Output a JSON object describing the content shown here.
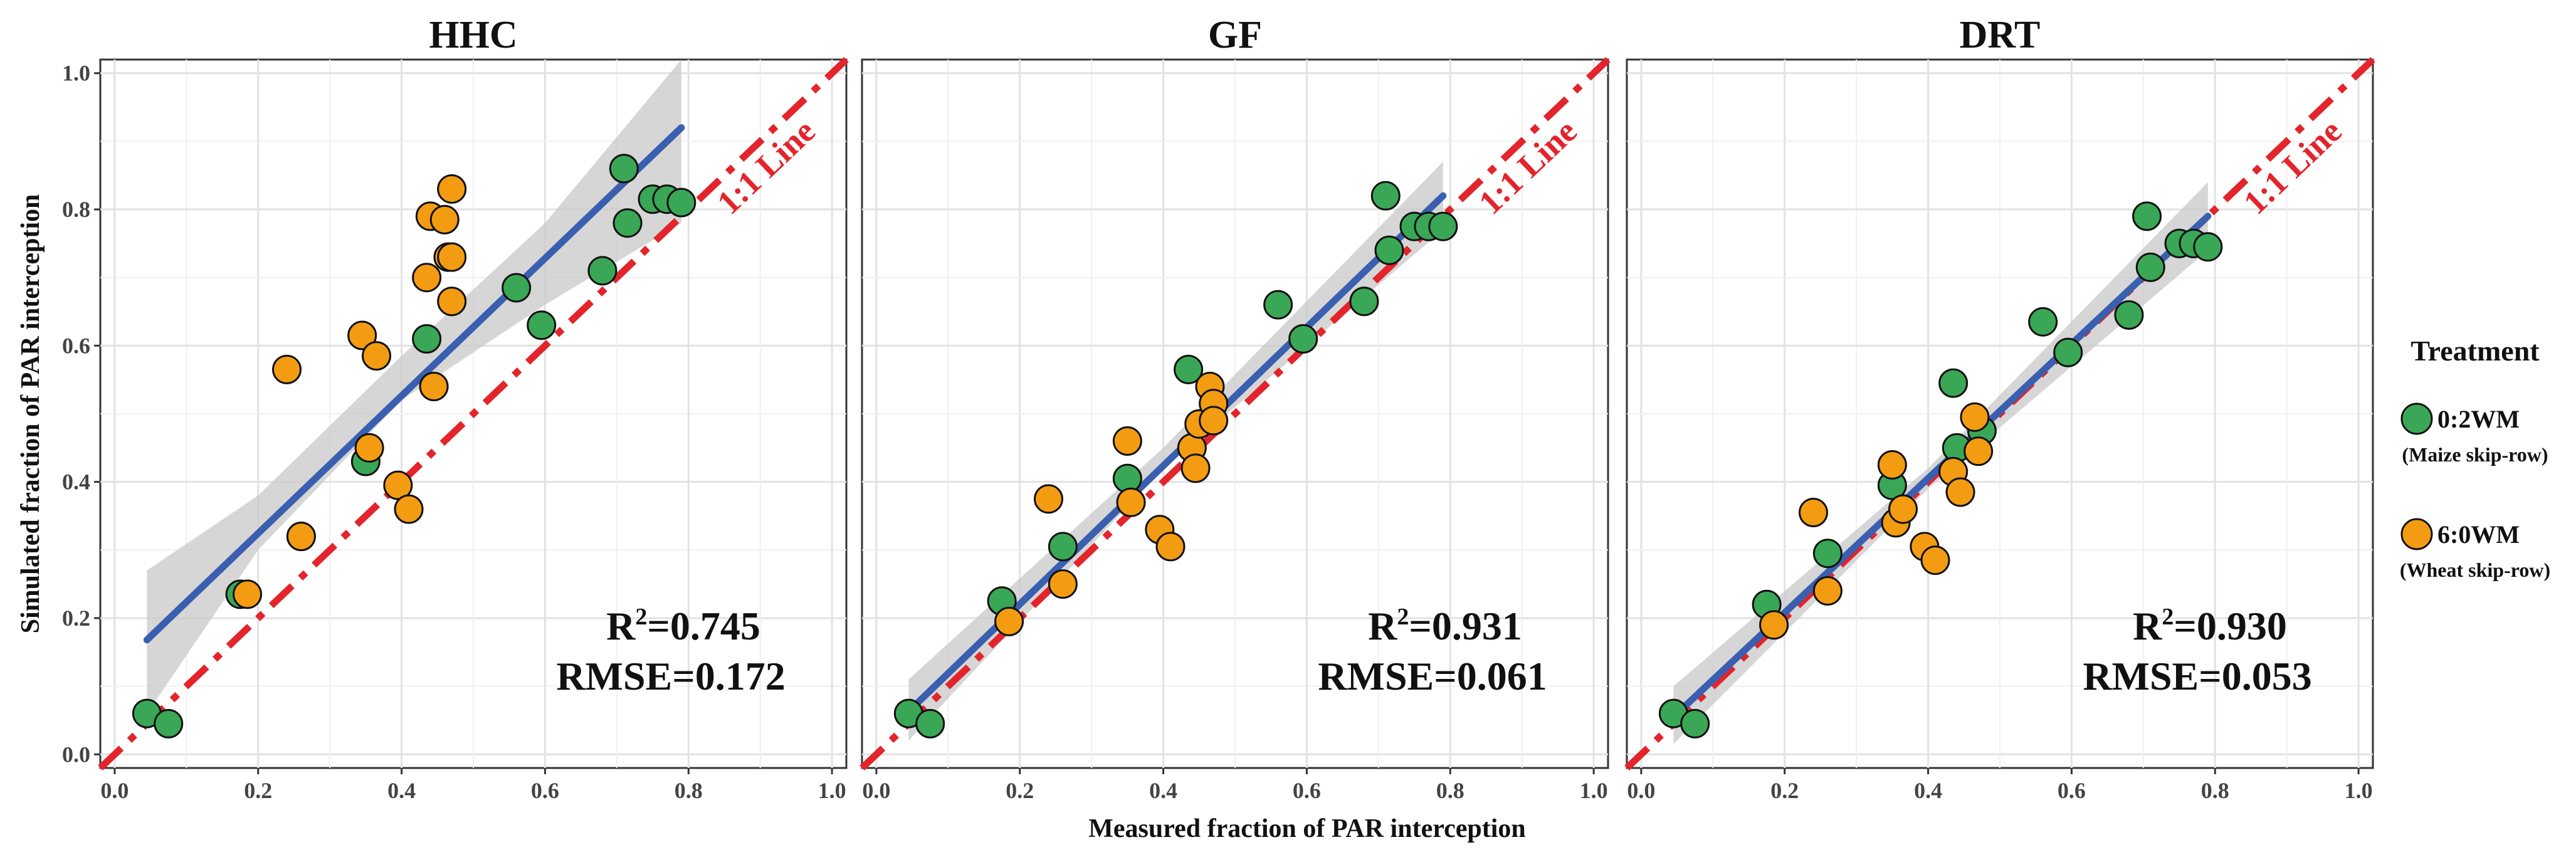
{
  "chart_data": {
    "type": "scatter",
    "xlabel": "Measured fraction of PAR interception",
    "ylabel": "Simulated fraction of PAR interception",
    "xlim": [
      0,
      1
    ],
    "ylim": [
      0,
      1
    ],
    "x_ticks": [
      "0.0",
      "0.2",
      "0.4",
      "0.6",
      "0.8",
      "1.0"
    ],
    "y_ticks": [
      "0.0",
      "0.2",
      "0.4",
      "0.6",
      "0.8",
      "1.0"
    ],
    "grid": true,
    "reference_line_label": "1:1 Line",
    "legend": {
      "title": "Treatment",
      "position": "right",
      "entries": [
        {
          "label": "0:2WM",
          "sublabel": "(Maize skip-row)",
          "color": "#3aa757"
        },
        {
          "label": "6:0WM",
          "sublabel": "(Wheat skip-row)",
          "color": "#f39c12"
        }
      ]
    },
    "colors": {
      "reference_line": "#e3242b",
      "fit_line": "#3a5fb0",
      "confidence_band": "#c8c8c8"
    },
    "panels": [
      {
        "title": "HHC",
        "r2_prefix": "R",
        "r2_sup": "2",
        "r2_value": "=0.745",
        "rmse_text": "RMSE=0.172",
        "fit": {
          "x0": 0.045,
          "y0": 0.168,
          "x1": 0.79,
          "y1": 0.92
        },
        "band": {
          "lower": [
            [
              0.045,
              0.06
            ],
            [
              0.2,
              0.3
            ],
            [
              0.4,
              0.52
            ],
            [
              0.6,
              0.66
            ],
            [
              0.79,
              0.78
            ]
          ],
          "upper": [
            [
              0.045,
              0.27
            ],
            [
              0.2,
              0.38
            ],
            [
              0.4,
              0.585
            ],
            [
              0.6,
              0.78
            ],
            [
              0.79,
              1.02
            ]
          ]
        },
        "series": [
          {
            "name": "0:2WM",
            "x": [
              0.045,
              0.075,
              0.175,
              0.26,
              0.35,
              0.435,
              0.56,
              0.595,
              0.68,
              0.71,
              0.715,
              0.75,
              0.77,
              0.79
            ],
            "y": [
              0.06,
              0.045,
              0.235,
              0.32,
              0.43,
              0.61,
              0.685,
              0.63,
              0.71,
              0.86,
              0.78,
              0.815,
              0.815,
              0.81
            ]
          },
          {
            "name": "6:0WM",
            "x": [
              0.185,
              0.24,
              0.26,
              0.345,
              0.355,
              0.365,
              0.395,
              0.41,
              0.435,
              0.44,
              0.445,
              0.46,
              0.465,
              0.47,
              0.47,
              0.47
            ],
            "y": [
              0.235,
              0.565,
              0.32,
              0.615,
              0.45,
              0.585,
              0.395,
              0.36,
              0.7,
              0.79,
              0.54,
              0.785,
              0.73,
              0.665,
              0.83,
              0.73
            ]
          }
        ]
      },
      {
        "title": "GF",
        "r2_prefix": "R",
        "r2_sup": "2",
        "r2_value": "=0.931",
        "rmse_text": "RMSE=0.061",
        "fit": {
          "x0": 0.045,
          "y0": 0.063,
          "x1": 0.79,
          "y1": 0.82
        },
        "band": {
          "lower": [
            [
              0.045,
              0.02
            ],
            [
              0.4,
              0.42
            ],
            [
              0.79,
              0.77
            ]
          ],
          "upper": [
            [
              0.045,
              0.11
            ],
            [
              0.4,
              0.45
            ],
            [
              0.79,
              0.87
            ]
          ]
        },
        "series": [
          {
            "name": "0:2WM",
            "x": [
              0.045,
              0.075,
              0.175,
              0.26,
              0.35,
              0.435,
              0.56,
              0.595,
              0.68,
              0.71,
              0.715,
              0.75,
              0.77,
              0.79
            ],
            "y": [
              0.06,
              0.045,
              0.225,
              0.305,
              0.405,
              0.565,
              0.66,
              0.61,
              0.665,
              0.82,
              0.74,
              0.775,
              0.775,
              0.775
            ]
          },
          {
            "name": "6:0WM",
            "x": [
              0.185,
              0.24,
              0.26,
              0.35,
              0.355,
              0.395,
              0.41,
              0.44,
              0.445,
              0.45,
              0.465,
              0.47,
              0.47
            ],
            "y": [
              0.195,
              0.375,
              0.25,
              0.46,
              0.37,
              0.33,
              0.305,
              0.45,
              0.42,
              0.485,
              0.54,
              0.515,
              0.49
            ]
          }
        ]
      },
      {
        "title": "DRT",
        "r2_prefix": "R",
        "r2_sup": "2",
        "r2_value": "=0.930",
        "rmse_text": "RMSE=0.053",
        "fit": {
          "x0": 0.045,
          "y0": 0.055,
          "x1": 0.79,
          "y1": 0.79
        },
        "band": {
          "lower": [
            [
              0.045,
              0.015
            ],
            [
              0.4,
              0.39
            ],
            [
              0.79,
              0.74
            ]
          ],
          "upper": [
            [
              0.045,
              0.1
            ],
            [
              0.4,
              0.42
            ],
            [
              0.79,
              0.84
            ]
          ]
        },
        "series": [
          {
            "name": "0:2WM",
            "x": [
              0.045,
              0.075,
              0.175,
              0.26,
              0.35,
              0.435,
              0.44,
              0.475,
              0.56,
              0.595,
              0.68,
              0.705,
              0.71,
              0.75,
              0.77,
              0.79
            ],
            "y": [
              0.06,
              0.045,
              0.22,
              0.295,
              0.395,
              0.545,
              0.45,
              0.475,
              0.635,
              0.59,
              0.645,
              0.79,
              0.715,
              0.75,
              0.75,
              0.745
            ]
          },
          {
            "name": "6:0WM",
            "x": [
              0.185,
              0.24,
              0.26,
              0.35,
              0.355,
              0.365,
              0.395,
              0.41,
              0.435,
              0.445,
              0.465,
              0.47
            ],
            "y": [
              0.19,
              0.355,
              0.24,
              0.425,
              0.34,
              0.36,
              0.305,
              0.285,
              0.415,
              0.385,
              0.495,
              0.445
            ]
          }
        ]
      }
    ]
  }
}
